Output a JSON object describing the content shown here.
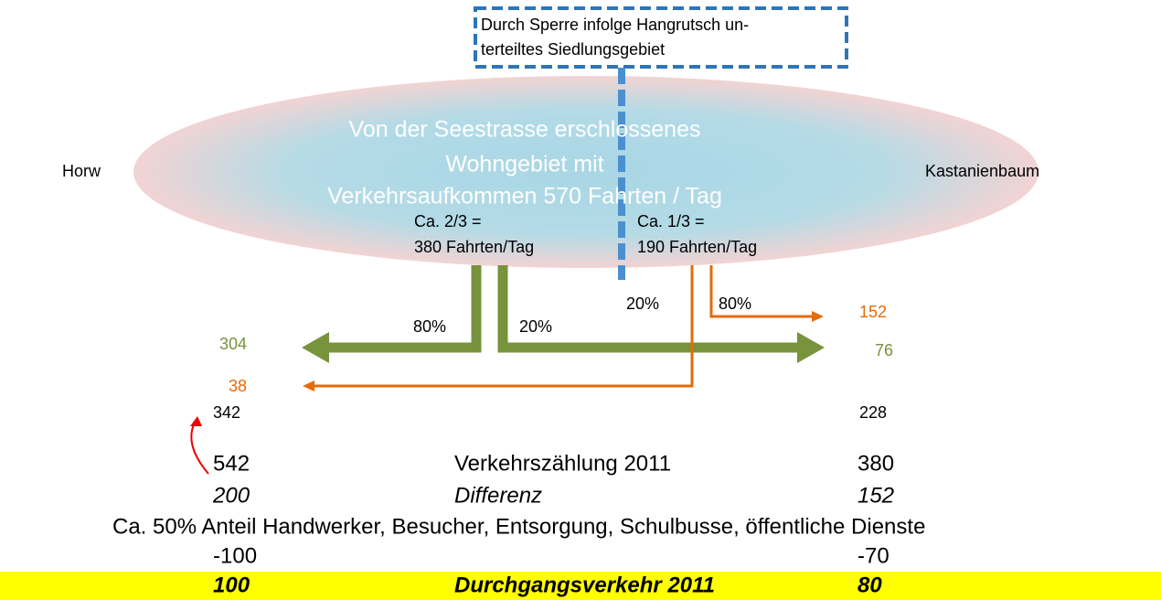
{
  "note_box": {
    "lines": [
      "Durch Sperre infolge Hangrutsch un-",
      "terteiltes Siedlungsgebiet"
    ]
  },
  "area": {
    "lines": [
      "Von der Seestrasse erschlossenes",
      "Wohngebiet mit",
      "Verkehrsaufkommen 570 Fahrten / Tag"
    ]
  },
  "places": {
    "left": "Horw",
    "right": "Kastanienbaum"
  },
  "share_left": [
    "Ca. 2/3 =",
    "380 Fahrten/Tag"
  ],
  "share_right": [
    "Ca. 1/3 =",
    "190 Fahrten/Tag"
  ],
  "percents": {
    "green_left": "80%",
    "green_right": "20%",
    "orange_left": "20%",
    "orange_right": "80%"
  },
  "flows": {
    "left_green": "304",
    "left_orange": "38",
    "left_total": "342",
    "right_orange": "152",
    "right_green": "76",
    "right_total": "228"
  },
  "table": {
    "rows": [
      [
        "542",
        "Verkehrszählung 2011",
        "380"
      ],
      [
        "200",
        "Differenz",
        "152"
      ],
      [
        "Ca. 50% Anteil Handwerker, Besucher, Entsorgung, Schulbusse, öffentliche Dienste"
      ],
      [
        "-100",
        "-70"
      ],
      [
        "100",
        "Durchgangsverkehr 2011",
        "80"
      ]
    ]
  }
}
